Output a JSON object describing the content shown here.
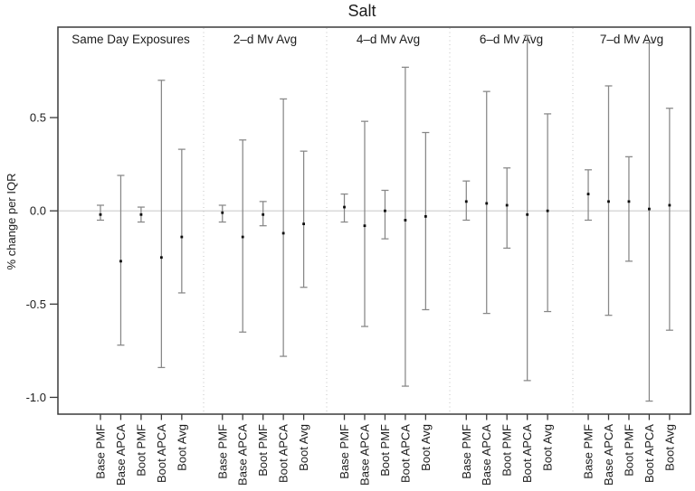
{
  "chart_data": {
    "type": "errorbar",
    "title": "Salt",
    "ylabel": "% change per IQR",
    "ylim": [
      -1.09,
      0.985
    ],
    "yticks": [
      0.5,
      0.0,
      -0.5,
      -1.0
    ],
    "ytick_labels": [
      "0.5",
      "0.0",
      "-0.5",
      "-1.0"
    ],
    "reference_line": 0.0,
    "grid": "off",
    "legend": "none",
    "categories": [
      "Base PMF",
      "Base APCA",
      "Boot PMF",
      "Boot APCA",
      "Boot Avg"
    ],
    "panels": [
      {
        "label": "Same Day Exposures",
        "series": [
          {
            "category": "Base PMF",
            "estimate": -0.02,
            "ci_low": -0.05,
            "ci_high": 0.03
          },
          {
            "category": "Base APCA",
            "estimate": -0.27,
            "ci_low": -0.72,
            "ci_high": 0.19
          },
          {
            "category": "Boot PMF",
            "estimate": -0.02,
            "ci_low": -0.06,
            "ci_high": 0.02
          },
          {
            "category": "Boot APCA",
            "estimate": -0.25,
            "ci_low": -0.84,
            "ci_high": 0.7
          },
          {
            "category": "Boot Avg",
            "estimate": -0.14,
            "ci_low": -0.44,
            "ci_high": 0.33
          }
        ]
      },
      {
        "label": "2–d Mv Avg",
        "series": [
          {
            "category": "Base PMF",
            "estimate": -0.01,
            "ci_low": -0.06,
            "ci_high": 0.03
          },
          {
            "category": "Base APCA",
            "estimate": -0.14,
            "ci_low": -0.65,
            "ci_high": 0.38
          },
          {
            "category": "Boot PMF",
            "estimate": -0.02,
            "ci_low": -0.08,
            "ci_high": 0.05
          },
          {
            "category": "Boot APCA",
            "estimate": -0.12,
            "ci_low": -0.78,
            "ci_high": 0.6
          },
          {
            "category": "Boot Avg",
            "estimate": -0.07,
            "ci_low": -0.41,
            "ci_high": 0.32
          }
        ]
      },
      {
        "label": "4–d Mv Avg",
        "series": [
          {
            "category": "Base PMF",
            "estimate": 0.02,
            "ci_low": -0.06,
            "ci_high": 0.09
          },
          {
            "category": "Base APCA",
            "estimate": -0.08,
            "ci_low": -0.62,
            "ci_high": 0.48
          },
          {
            "category": "Boot PMF",
            "estimate": 0.0,
            "ci_low": -0.15,
            "ci_high": 0.11
          },
          {
            "category": "Boot APCA",
            "estimate": -0.05,
            "ci_low": -0.94,
            "ci_high": 0.77
          },
          {
            "category": "Boot Avg",
            "estimate": -0.03,
            "ci_low": -0.53,
            "ci_high": 0.42
          }
        ]
      },
      {
        "label": "6–d Mv Avg",
        "series": [
          {
            "category": "Base PMF",
            "estimate": 0.05,
            "ci_low": -0.05,
            "ci_high": 0.16
          },
          {
            "category": "Base APCA",
            "estimate": 0.04,
            "ci_low": -0.55,
            "ci_high": 0.64
          },
          {
            "category": "Boot PMF",
            "estimate": 0.03,
            "ci_low": -0.2,
            "ci_high": 0.23
          },
          {
            "category": "Boot APCA",
            "estimate": -0.02,
            "ci_low": -0.91,
            "ci_high": 0.94
          },
          {
            "category": "Boot Avg",
            "estimate": 0.0,
            "ci_low": -0.54,
            "ci_high": 0.52
          }
        ]
      },
      {
        "label": "7–d Mv Avg",
        "series": [
          {
            "category": "Base PMF",
            "estimate": 0.09,
            "ci_low": -0.05,
            "ci_high": 0.22
          },
          {
            "category": "Base APCA",
            "estimate": 0.05,
            "ci_low": -0.56,
            "ci_high": 0.67
          },
          {
            "category": "Boot PMF",
            "estimate": 0.05,
            "ci_low": -0.27,
            "ci_high": 0.29
          },
          {
            "category": "Boot APCA",
            "estimate": 0.01,
            "ci_low": -1.02,
            "ci_high": 0.9
          },
          {
            "category": "Boot Avg",
            "estimate": 0.03,
            "ci_low": -0.64,
            "ci_high": 0.55
          }
        ]
      }
    ]
  }
}
